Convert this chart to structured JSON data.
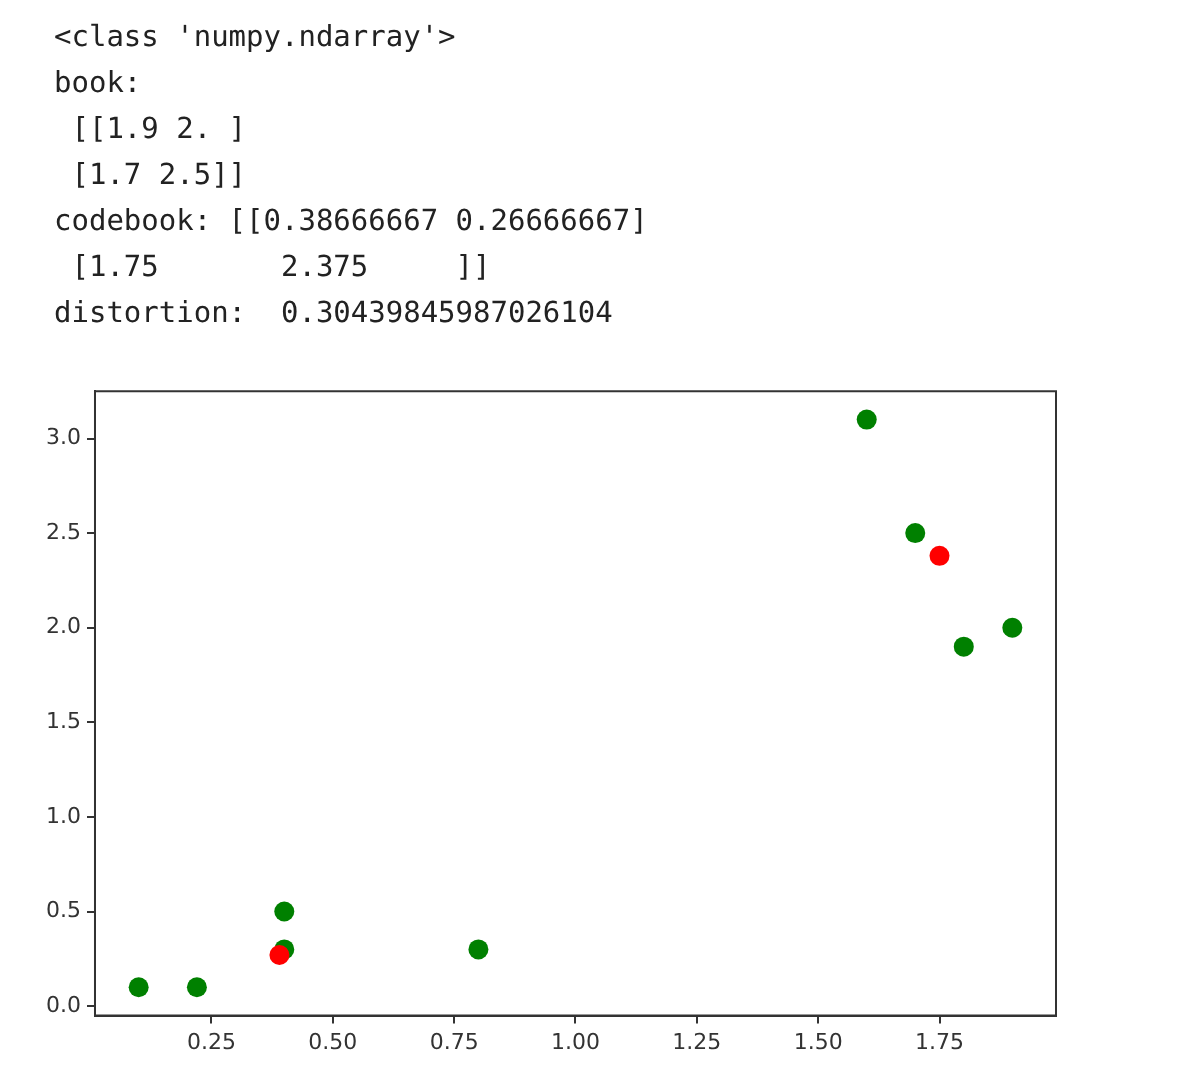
{
  "chart_data": {
    "type": "scatter",
    "annotations": [
      "<class 'numpy.ndarray'>",
      "book:",
      " [[1.9 2. ]",
      " [1.7 2.5]]",
      "codebook: [[0.38666667 0.26666667]",
      " [1.75       2.375     ]]",
      "distortion:  0.30439845987026104"
    ],
    "series": [
      {
        "color": "#008000",
        "x": [
          0.1,
          0.22,
          0.4,
          0.4,
          0.8,
          1.6,
          1.7,
          1.8,
          1.9
        ],
        "values": [
          0.1,
          0.1,
          0.5,
          0.3,
          0.3,
          3.1,
          2.5,
          1.9,
          2.0
        ]
      },
      {
        "color": "#ff0000",
        "x": [
          0.39,
          1.75
        ],
        "values": [
          0.27,
          2.38
        ]
      }
    ],
    "xlim": [
      0.01,
      1.99
    ],
    "ylim": [
      -0.05,
      3.25
    ],
    "xticks": [
      {
        "value": 0.25,
        "label": "0.25"
      },
      {
        "value": 0.5,
        "label": "0.50"
      },
      {
        "value": 0.75,
        "label": "0.75"
      },
      {
        "value": 1,
        "label": "1.00"
      },
      {
        "value": 1.25,
        "label": "1.25"
      },
      {
        "value": 1.5,
        "label": "1.50"
      },
      {
        "value": 1.75,
        "label": "1.75"
      }
    ],
    "yticks": [
      {
        "value": 0,
        "label": "0.0"
      },
      {
        "value": 0.5,
        "label": "0.5"
      },
      {
        "value": 1,
        "label": "1.0"
      },
      {
        "value": 1.5,
        "label": "1.5"
      },
      {
        "value": 2,
        "label": "2.0"
      },
      {
        "value": 2.5,
        "label": "2.5"
      },
      {
        "value": 3,
        "label": "3.0"
      }
    ],
    "marker": "circle",
    "grid": false,
    "legend": false
  }
}
